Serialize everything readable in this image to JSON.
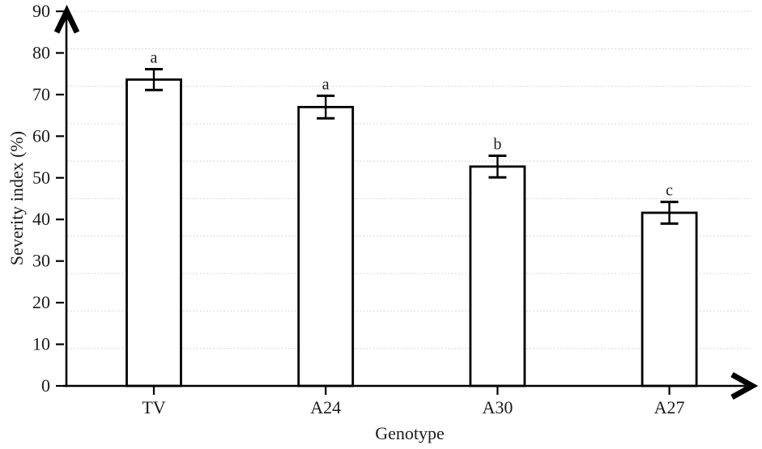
{
  "figure": {
    "background": "#ffffff"
  },
  "chart_data": {
    "type": "bar",
    "title": "",
    "xlabel": "Genotype",
    "ylabel": "Severity index (%)",
    "categories": [
      "TV",
      "A24",
      "A30",
      "A27"
    ],
    "values": [
      73.6,
      67.0,
      52.7,
      41.6
    ],
    "error_bars": [
      2.5,
      2.7,
      2.6,
      2.6
    ],
    "sig_letters": [
      "a",
      "a",
      "b",
      "c"
    ],
    "ylim": [
      0,
      90
    ],
    "yticks": [
      0,
      10,
      20,
      30,
      40,
      50,
      60,
      70,
      80,
      90
    ],
    "grid": {
      "horizontal_divisions": 10,
      "style": "dotted",
      "color": "#d9d9d9"
    },
    "legend_position": "none",
    "axis_arrows": true,
    "colors": {
      "bar_fill": "#ffffff",
      "bar_stroke": "#000000",
      "axis": "#000000",
      "text": "#1b1b1b",
      "gridline": "#d9d9d9"
    }
  }
}
